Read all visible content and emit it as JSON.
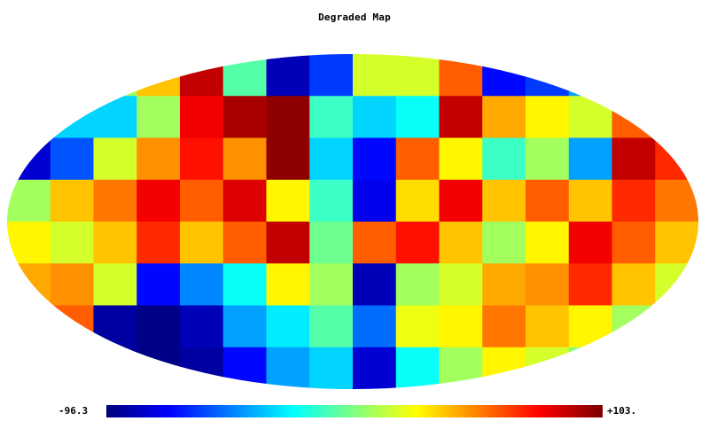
{
  "chart_data": {
    "type": "heatmap",
    "projection": "mollweide",
    "title": "Degraded Map",
    "colormap": "jet",
    "range": {
      "min_label": "-96.3",
      "max_label": "+103.",
      "min": -96.3,
      "max": 103.0
    },
    "grid_columns": 16,
    "grid_rows": 8,
    "values": [
      [
        -20,
        5,
        10,
        40,
        90,
        -5,
        -85,
        -60,
        20,
        20,
        60,
        -70,
        -60,
        -40,
        -20,
        -60
      ],
      [
        -70,
        -30,
        -30,
        10,
        80,
        95,
        100,
        -10,
        -30,
        -20,
        90,
        45,
        30,
        20,
        60,
        -20
      ],
      [
        -80,
        -55,
        20,
        50,
        75,
        50,
        100,
        -30,
        -70,
        60,
        30,
        -10,
        10,
        -40,
        90,
        70
      ],
      [
        10,
        40,
        55,
        80,
        60,
        85,
        30,
        -10,
        -75,
        35,
        80,
        40,
        60,
        40,
        70,
        55
      ],
      [
        30,
        20,
        40,
        70,
        40,
        60,
        90,
        0,
        60,
        75,
        40,
        10,
        30,
        80,
        60,
        40
      ],
      [
        45,
        50,
        20,
        -70,
        -45,
        -20,
        30,
        10,
        -85,
        10,
        20,
        45,
        50,
        70,
        40,
        20
      ],
      [
        70,
        60,
        -90,
        -95,
        -85,
        -40,
        -25,
        -5,
        -50,
        25,
        30,
        55,
        40,
        30,
        10,
        0
      ],
      [
        -10,
        -75,
        -90,
        -95,
        -90,
        -70,
        -40,
        -30,
        -80,
        -20,
        10,
        30,
        20,
        5,
        -5,
        -10
      ]
    ]
  }
}
